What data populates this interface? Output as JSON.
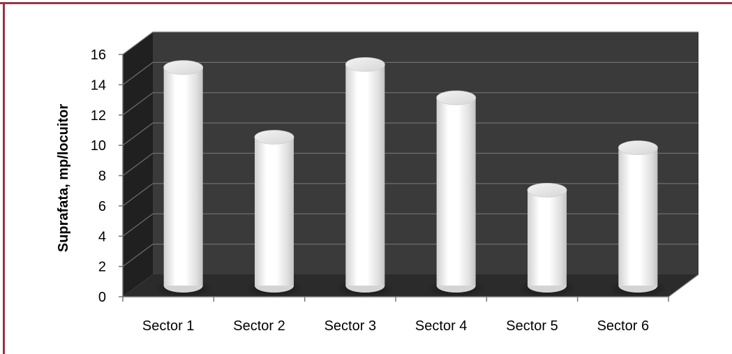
{
  "chart_data": {
    "type": "bar",
    "title": "",
    "xlabel": "",
    "ylabel": "Suprafata, mp/locuitor",
    "categories": [
      "Sector 1",
      "Sector 2",
      "Sector 3",
      "Sector 4",
      "Sector 5",
      "Sector 6"
    ],
    "values": [
      14.4,
      9.8,
      14.6,
      12.4,
      6.3,
      9.1
    ],
    "ylim": [
      0,
      16
    ],
    "yticks": [
      0,
      2,
      4,
      6,
      8,
      10,
      12,
      14,
      16
    ],
    "grid": true,
    "legend": "none",
    "style": "3d-cylinder",
    "colors": {
      "frame": "#993344",
      "back_wall": "#3a3a3a",
      "side_wall": "#202020",
      "floor": "#2b2b2b",
      "gridline": "#6e6e6e",
      "bar": "#ffffff"
    }
  }
}
